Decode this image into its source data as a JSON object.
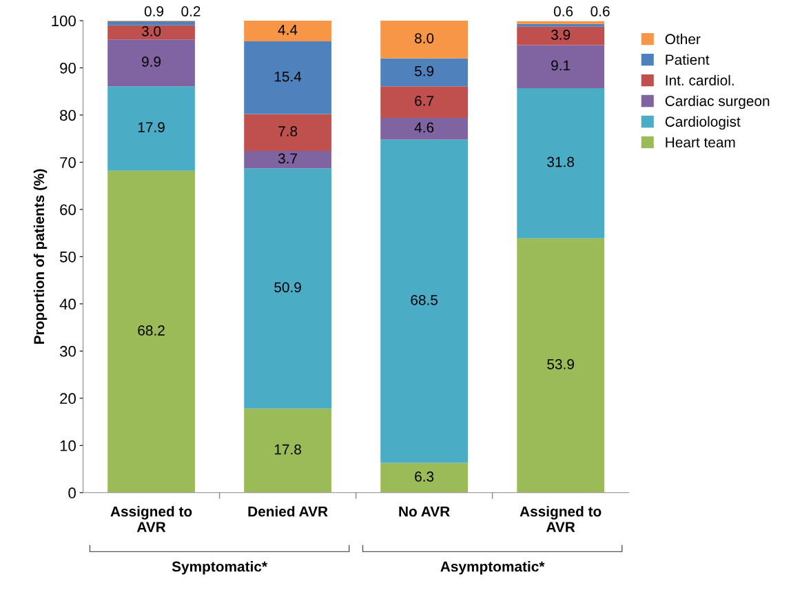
{
  "chart_data": {
    "type": "bar",
    "stacked": true,
    "ylabel": "Proportion of patients (%)",
    "categories": [
      "Assigned to\nAVR",
      "Denied AVR",
      "No AVR",
      "Assigned to\nAVR"
    ],
    "series": [
      {
        "name": "Heart team",
        "color": "#9bbb59",
        "values": [
          68.2,
          17.8,
          6.3,
          53.9
        ],
        "value_labels": [
          "68.2",
          "17.8",
          "6.3",
          "53.9"
        ]
      },
      {
        "name": "Cardiologist",
        "color": "#4bacc6",
        "values": [
          17.9,
          50.9,
          68.5,
          31.8
        ],
        "value_labels": [
          "17.9",
          "50.9",
          "68.5",
          "31.8"
        ]
      },
      {
        "name": "Cardiac surgeon",
        "color": "#8064a2",
        "values": [
          9.9,
          3.7,
          4.6,
          9.1
        ],
        "value_labels": [
          "9.9",
          "3.7",
          "4.6",
          "9.1"
        ]
      },
      {
        "name": "Int. cardiol.",
        "color": "#c0504d",
        "values": [
          3.0,
          7.8,
          6.7,
          3.9
        ],
        "value_labels": [
          "3.0",
          "7.8",
          "6.7",
          "3.9"
        ]
      },
      {
        "name": "Patient",
        "color": "#4f81bd",
        "values": [
          0.9,
          15.4,
          5.9,
          0.6
        ],
        "value_labels": [
          "0.9",
          "15.4",
          "5.9",
          "0.6"
        ]
      },
      {
        "name": "Other",
        "color": "#f79646",
        "values": [
          0.2,
          4.4,
          8.0,
          0.6
        ],
        "value_labels": [
          "0.2",
          "4.4",
          "8.0",
          "0.6"
        ]
      }
    ],
    "ylim": [
      0,
      100
    ],
    "yticks": [
      0,
      10,
      20,
      30,
      40,
      50,
      60,
      70,
      80,
      90,
      100
    ],
    "legend": "top right",
    "grid": false,
    "annotations": [
      "Symptomatic*",
      "Asymptomatic*"
    ]
  }
}
